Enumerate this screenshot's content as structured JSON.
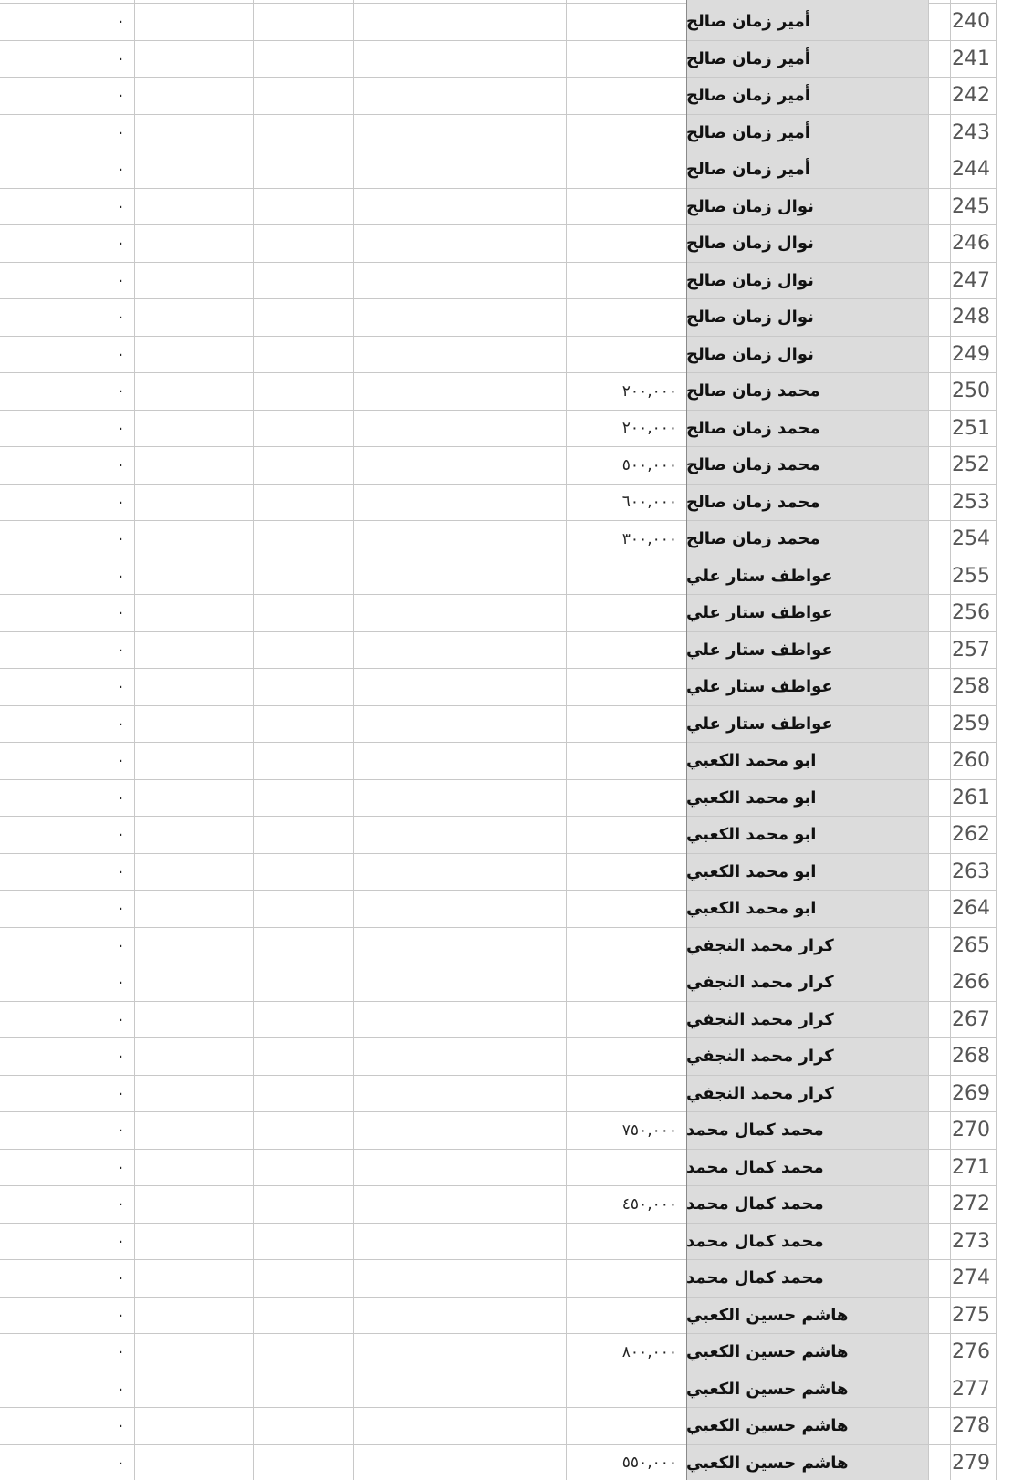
{
  "sheet": {
    "rows": [
      {
        "num": "240",
        "name": "أمير زمان صالح",
        "amount": "",
        "zero": "٠"
      },
      {
        "num": "241",
        "name": "أمير زمان صالح",
        "amount": "",
        "zero": "٠"
      },
      {
        "num": "242",
        "name": "أمير زمان صالح",
        "amount": "",
        "zero": "٠"
      },
      {
        "num": "243",
        "name": "أمير زمان صالح",
        "amount": "",
        "zero": "٠"
      },
      {
        "num": "244",
        "name": "أمير زمان صالح",
        "amount": "",
        "zero": "٠"
      },
      {
        "num": "245",
        "name": "نوال زمان صالح",
        "amount": "",
        "zero": "٠"
      },
      {
        "num": "246",
        "name": "نوال زمان صالح",
        "amount": "",
        "zero": "٠"
      },
      {
        "num": "247",
        "name": "نوال زمان صالح",
        "amount": "",
        "zero": "٠"
      },
      {
        "num": "248",
        "name": "نوال زمان صالح",
        "amount": "",
        "zero": "٠"
      },
      {
        "num": "249",
        "name": "نوال زمان صالح",
        "amount": "",
        "zero": "٠"
      },
      {
        "num": "250",
        "name": "محمد زمان صالح",
        "amount": "٢٠٠,٠٠٠",
        "zero": "٠"
      },
      {
        "num": "251",
        "name": "محمد زمان صالح",
        "amount": "٢٠٠,٠٠٠",
        "zero": "٠"
      },
      {
        "num": "252",
        "name": "محمد زمان صالح",
        "amount": "٥٠٠,٠٠٠",
        "zero": "٠"
      },
      {
        "num": "253",
        "name": "محمد زمان صالح",
        "amount": "٦٠٠,٠٠٠",
        "zero": "٠"
      },
      {
        "num": "254",
        "name": "محمد زمان صالح",
        "amount": "٣٠٠,٠٠٠",
        "zero": "٠"
      },
      {
        "num": "255",
        "name": "عواطف ستار علي",
        "amount": "",
        "zero": "٠"
      },
      {
        "num": "256",
        "name": "عواطف ستار علي",
        "amount": "",
        "zero": "٠"
      },
      {
        "num": "257",
        "name": "عواطف ستار علي",
        "amount": "",
        "zero": "٠"
      },
      {
        "num": "258",
        "name": "عواطف ستار علي",
        "amount": "",
        "zero": "٠"
      },
      {
        "num": "259",
        "name": "عواطف ستار علي",
        "amount": "",
        "zero": "٠"
      },
      {
        "num": "260",
        "name": "ابو محمد الكعبي",
        "amount": "",
        "zero": "٠"
      },
      {
        "num": "261",
        "name": "ابو محمد الكعبي",
        "amount": "",
        "zero": "٠"
      },
      {
        "num": "262",
        "name": "ابو محمد الكعبي",
        "amount": "",
        "zero": "٠"
      },
      {
        "num": "263",
        "name": "ابو محمد الكعبي",
        "amount": "",
        "zero": "٠"
      },
      {
        "num": "264",
        "name": "ابو محمد الكعبي",
        "amount": "",
        "zero": "٠"
      },
      {
        "num": "265",
        "name": "كرار محمد النجفي",
        "amount": "",
        "zero": "٠"
      },
      {
        "num": "266",
        "name": "كرار محمد النجفي",
        "amount": "",
        "zero": "٠"
      },
      {
        "num": "267",
        "name": "كرار محمد النجفي",
        "amount": "",
        "zero": "٠"
      },
      {
        "num": "268",
        "name": "كرار محمد النجفي",
        "amount": "",
        "zero": "٠"
      },
      {
        "num": "269",
        "name": "كرار محمد النجفي",
        "amount": "",
        "zero": "٠"
      },
      {
        "num": "270",
        "name": "محمد كمال محمد",
        "amount": "٧٥٠,٠٠٠",
        "zero": "٠"
      },
      {
        "num": "271",
        "name": "محمد كمال محمد",
        "amount": "",
        "zero": "٠"
      },
      {
        "num": "272",
        "name": "محمد كمال محمد",
        "amount": "٤٥٠,٠٠٠",
        "zero": "٠"
      },
      {
        "num": "273",
        "name": "محمد كمال محمد",
        "amount": "",
        "zero": "٠"
      },
      {
        "num": "274",
        "name": "محمد كمال محمد",
        "amount": "",
        "zero": "٠"
      },
      {
        "num": "275",
        "name": "هاشم حسين الكعبي",
        "amount": "",
        "zero": "٠"
      },
      {
        "num": "276",
        "name": "هاشم حسين الكعبي",
        "amount": "٨٠٠,٠٠٠",
        "zero": "٠"
      },
      {
        "num": "277",
        "name": "هاشم حسين الكعبي",
        "amount": "",
        "zero": "٠"
      },
      {
        "num": "278",
        "name": "هاشم حسين الكعبي",
        "amount": "",
        "zero": "٠"
      },
      {
        "num": "279",
        "name": "هاشم حسين الكعبي",
        "amount": "٥٥٠,٠٠٠",
        "zero": "٠"
      }
    ]
  }
}
